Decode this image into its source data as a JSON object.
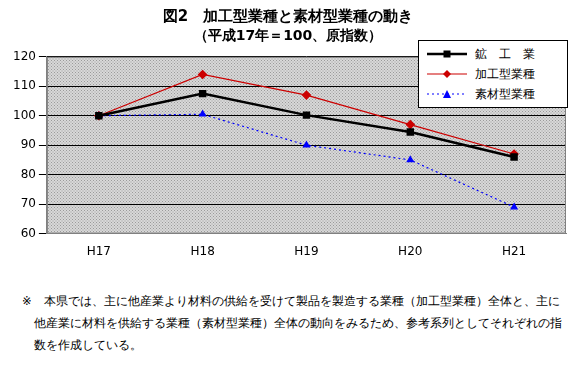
{
  "chart_data": {
    "type": "line",
    "title": "図2　加工型業種と素材型業種の動き",
    "subtitle": "（平成17年＝100、原指数）",
    "categories": [
      "H17",
      "H18",
      "H19",
      "H20",
      "H21"
    ],
    "series": [
      {
        "name": "鉱　工　業",
        "color": "#000000",
        "marker": "square",
        "line_style": "solid",
        "values": [
          100,
          107.5,
          100.2,
          94.5,
          86
        ]
      },
      {
        "name": "加工型業種",
        "color": "#cc0000",
        "marker": "diamond",
        "line_style": "solid",
        "values": [
          100,
          114,
          107,
          97,
          87
        ]
      },
      {
        "name": "素材型業種",
        "color": "#0000ff",
        "marker": "triangle",
        "line_style": "dotted",
        "values": [
          100,
          100.5,
          90,
          85,
          69
        ]
      }
    ],
    "ylim": [
      60,
      120
    ],
    "yticks": [
      60,
      70,
      80,
      90,
      100,
      110,
      120
    ],
    "grid": true,
    "legend": "upper right",
    "annotations": [
      "※　本県では、主に他産業より材料の供給を受けて製品を製造する業種（加工型業種）全体と、主に他産業に材料を供給する業種（素材型業種）全体の動向をみるため、参考系列としてそれぞれの指数を作成している。"
    ]
  }
}
